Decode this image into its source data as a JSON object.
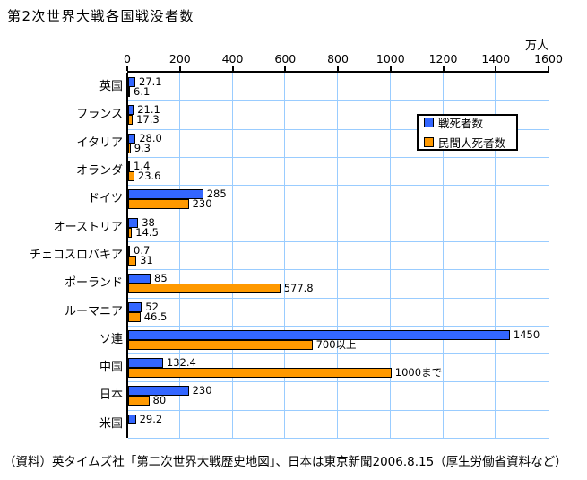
{
  "source_note": "（資料）英タイムズ社「第二次世界大戦歴史地図」、日本は東京新聞2006.8.15（厚生労働省資料など）",
  "colors": {
    "military_bar": "#3366FF",
    "civilian_bar": "#FF9900",
    "bar_border": "#000000",
    "gridline": "#99CCFF",
    "axis": "#000000",
    "background": "#FFFFFF"
  },
  "chart_data": {
    "type": "bar",
    "orientation": "horizontal",
    "title": "第2次世界大戦各国戦没者数",
    "unit": "万人",
    "xlim": [
      0,
      1600
    ],
    "x_ticks": [
      0,
      200,
      400,
      600,
      800,
      1000,
      1200,
      1400,
      1600
    ],
    "grid": true,
    "legend_position": "inside-upper-right",
    "categories": [
      "英国",
      "フランス",
      "イタリア",
      "オランダ",
      "ドイツ",
      "オーストリア",
      "チェコスロバキア",
      "ポーランド",
      "ルーマニア",
      "ソ連",
      "中国",
      "日本",
      "米国"
    ],
    "series": [
      {
        "name": "戦死者数",
        "color": "#3366FF",
        "values": [
          27.1,
          21.1,
          28.0,
          1.4,
          285,
          38,
          0.7,
          85,
          52,
          1450,
          132.4,
          230,
          29.2
        ],
        "labels": [
          "27.1",
          "21.1",
          "28.0",
          "1.4",
          "285",
          "38",
          "0.7",
          "85",
          "52",
          "1450",
          "132.4",
          "230",
          "29.2"
        ]
      },
      {
        "name": "民間人死者数",
        "color": "#FF9900",
        "values": [
          6.1,
          17.3,
          9.3,
          23.6,
          230,
          14.5,
          31,
          577.8,
          46.5,
          700,
          1000,
          80,
          null
        ],
        "labels": [
          "6.1",
          "17.3",
          "9.3",
          "23.6",
          "230",
          "14.5",
          "31",
          "577.8",
          "46.5",
          "700以上",
          "1000まで",
          "80",
          ""
        ]
      }
    ]
  }
}
